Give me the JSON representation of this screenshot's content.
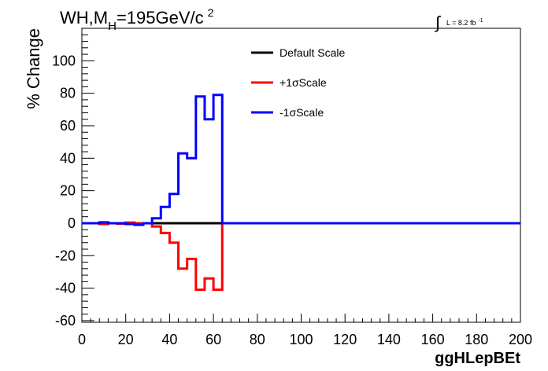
{
  "chart_data": {
    "type": "line",
    "title": {
      "main": "WH,M",
      "subscript": "H",
      "after": "=195GeV/c",
      "superscript": "2"
    },
    "lumi": {
      "integral": "∫",
      "text": "L = 8.2 fb",
      "superscript": "-1"
    },
    "xlabel": "ggHLepBEt",
    "ylabel": "% Change",
    "xlim": [
      0,
      200
    ],
    "ylim": [
      -61,
      120
    ],
    "x_ticks": [
      0,
      20,
      40,
      60,
      80,
      100,
      120,
      140,
      160,
      180,
      200
    ],
    "y_ticks": [
      -60,
      -40,
      -20,
      0,
      20,
      40,
      60,
      80,
      100
    ],
    "bin_edges": [
      0,
      4,
      8,
      12,
      16,
      20,
      24,
      28,
      32,
      36,
      40,
      44,
      48,
      52,
      56,
      60,
      64,
      68,
      72,
      76,
      80,
      84,
      88,
      92,
      96,
      100,
      104,
      108,
      112,
      116,
      120,
      124,
      128,
      132,
      136,
      140,
      144,
      148,
      152,
      156,
      160,
      164,
      168,
      172,
      176,
      180,
      184,
      188,
      192,
      196,
      200
    ],
    "series": [
      {
        "name": "Default Scale",
        "color": "#000000",
        "values": [
          0,
          0,
          0,
          0,
          0,
          0,
          0,
          0,
          0,
          0,
          0,
          0,
          0,
          0,
          0,
          0,
          0,
          0,
          0,
          0,
          0,
          0,
          0,
          0,
          0,
          0,
          0,
          0,
          0,
          0,
          0,
          0,
          0,
          0,
          0,
          0,
          0,
          0,
          0,
          0,
          0,
          0,
          0,
          0,
          0,
          0,
          0,
          0,
          0,
          0
        ]
      },
      {
        "name": "+1σScale",
        "color": "#ff0000",
        "values": [
          0,
          0,
          -0.5,
          0,
          -0.3,
          0.4,
          0,
          0,
          -2,
          -6,
          -12,
          -28,
          -22,
          -41,
          -34,
          -41,
          0,
          0,
          0,
          0,
          0,
          0,
          0,
          0,
          0,
          0,
          0,
          0,
          0,
          0,
          0,
          0,
          0,
          0,
          0,
          0,
          0,
          0,
          0,
          0,
          0,
          0,
          0,
          0,
          0,
          0,
          0,
          0,
          0,
          0
        ]
      },
      {
        "name": "-1σScale",
        "color": "#0000ff",
        "values": [
          0,
          0,
          0.5,
          0,
          0,
          -0.5,
          -1,
          0,
          3,
          10,
          18,
          43,
          40,
          78,
          64,
          79,
          0,
          0,
          0,
          0,
          0,
          0,
          0,
          0,
          0,
          0,
          0,
          0,
          0,
          0,
          0,
          0,
          0,
          0,
          0,
          0,
          0,
          0,
          0,
          0,
          0,
          0,
          0,
          0,
          0,
          0,
          0,
          0,
          0,
          0
        ]
      }
    ],
    "legend_position": "top-center"
  }
}
